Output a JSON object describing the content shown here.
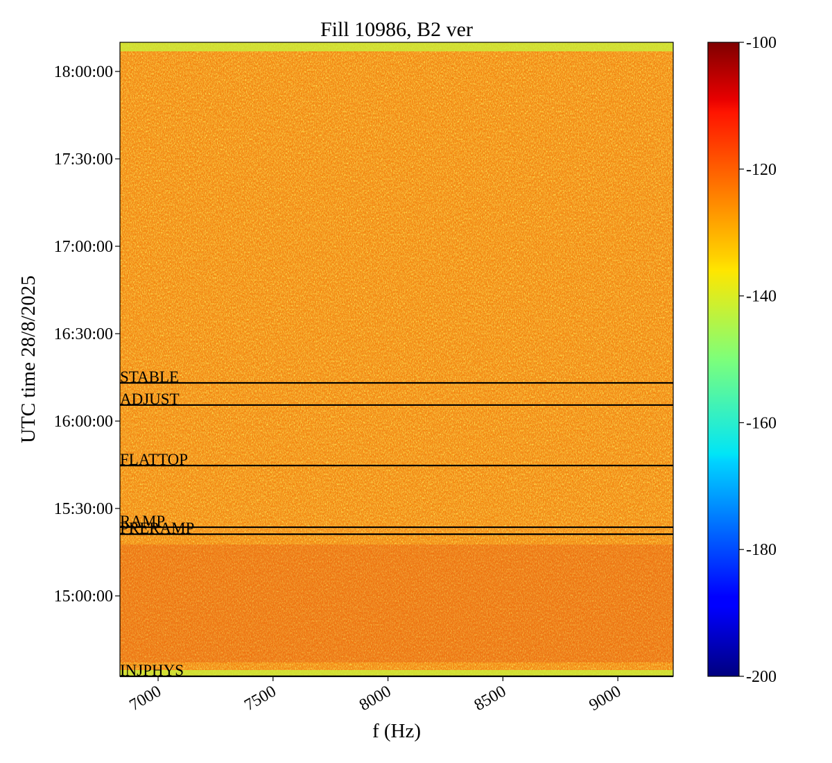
{
  "chart_data": {
    "type": "spectrogram",
    "title": "Fill 10986, B2 ver",
    "xlabel": "f (Hz)",
    "ylabel": "UTC time 28/8/2025",
    "xlim": [
      6834,
      9241
    ],
    "xticks": [
      7000,
      7500,
      8000,
      8500,
      9000
    ],
    "ylim": [
      "14:32:24",
      "18:10:00"
    ],
    "yticks": [
      "15:00:00",
      "15:30:00",
      "16:00:00",
      "16:30:00",
      "17:00:00",
      "17:30:00",
      "18:00:00"
    ],
    "colormap": "jet",
    "clim": [
      -200,
      -100
    ],
    "cticks": [
      -200,
      -180,
      -160,
      -140,
      -120,
      -100
    ],
    "annotations": [
      {
        "label": "STABLE",
        "time": "16:13:06"
      },
      {
        "label": "ADJUST",
        "time": "16:05:30"
      },
      {
        "label": "FLATTOP",
        "time": "15:44:45"
      },
      {
        "label": "RAMP",
        "time": "15:23:34"
      },
      {
        "label": "PRERAMP",
        "time": "15:21:10"
      },
      {
        "label": "INJPHYS",
        "time": "14:32:24"
      }
    ]
  }
}
